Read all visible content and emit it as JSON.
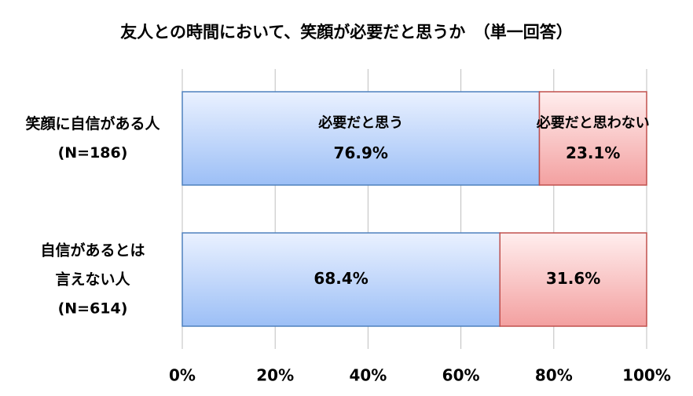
{
  "chart_data": {
    "type": "stacked-bar-horizontal",
    "title": "友人との時間において、笑顔が必要だと思うか　（単一回答）",
    "categories": [
      "笑顔に自信がある人\n(N=186)",
      "自信があるとは\n言えない人\n(N=614)"
    ],
    "series": [
      {
        "name": "必要だと思う",
        "color": "#4f81bd",
        "values": [
          76.9,
          68.4
        ],
        "value_labels": [
          "76.9%",
          "68.4%"
        ]
      },
      {
        "name": "必要だと思わない",
        "color": "#c0504d",
        "values": [
          23.1,
          31.6
        ],
        "value_labels": [
          "23.1%",
          "31.6%"
        ]
      }
    ],
    "xlim": [
      0,
      100
    ],
    "xticks": [
      {
        "value": 0,
        "label": "0%"
      },
      {
        "value": 20,
        "label": "20%"
      },
      {
        "value": 40,
        "label": "40%"
      },
      {
        "value": 60,
        "label": "60%"
      },
      {
        "value": 80,
        "label": "80%"
      },
      {
        "value": 100,
        "label": "100%"
      }
    ],
    "grid": true
  }
}
